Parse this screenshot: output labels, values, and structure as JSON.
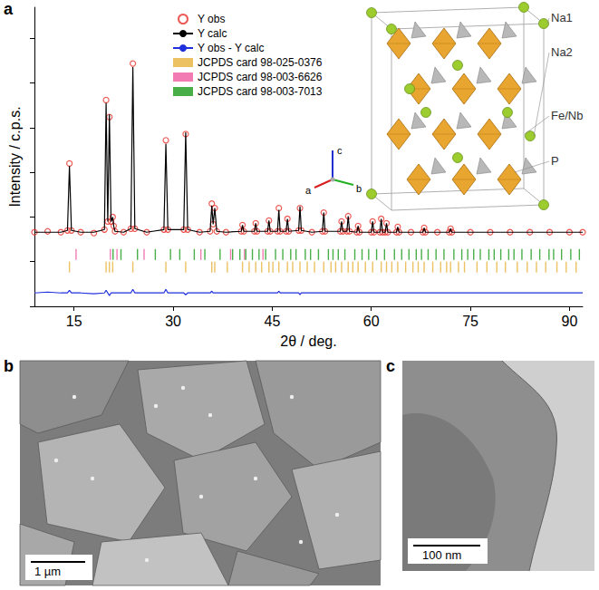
{
  "chart_data": {
    "type": "line",
    "x_label": "2θ / deg.",
    "y_label": "Intensity / c.p.s.",
    "x": [
      9,
      11,
      13,
      14.0,
      14.3,
      14.6,
      16,
      18,
      19.6,
      19.85,
      20.1,
      20.35,
      20.6,
      20.85,
      21.0,
      21.2,
      22.5,
      23.6,
      23.9,
      24.2,
      26,
      28.6,
      28.9,
      29.2,
      31.6,
      31.9,
      32.2,
      34,
      35.6,
      35.85,
      36.05,
      36.3,
      36.6,
      38,
      40.3,
      40.5,
      40.7,
      42.3,
      42.5,
      42.7,
      44.3,
      44.5,
      44.7,
      45.8,
      46.0,
      46.2,
      47.1,
      47.3,
      47.5,
      49.0,
      49.2,
      49.4,
      51,
      52.6,
      52.8,
      53.0,
      55.3,
      55.5,
      55.7,
      56.3,
      56.5,
      56.7,
      57.8,
      58.0,
      58.2,
      60.0,
      60.2,
      60.4,
      61.3,
      61.5,
      61.7,
      62.1,
      62.3,
      62.5,
      63.8,
      64.0,
      64.2,
      66,
      67.8,
      68.0,
      68.2,
      70,
      71.8,
      72,
      72.2,
      75,
      78,
      81,
      84,
      87,
      90,
      92
    ],
    "series": [
      {
        "name": "Y obs",
        "type": "scatter",
        "marker": "open_circle",
        "color": "#e8312a",
        "values": [
          83,
          84,
          83,
          85,
          160,
          85,
          83,
          82,
          86,
          231,
          95,
          212,
          95,
          100,
          90,
          84,
          83,
          87,
          272,
          87,
          83,
          86,
          186,
          86,
          86,
          193,
          86,
          83,
          84,
          115,
          92,
          110,
          84,
          83,
          84,
          91,
          84,
          84,
          93,
          84,
          84,
          96,
          84,
          84,
          110,
          84,
          84,
          98,
          84,
          85,
          110,
          85,
          83,
          84,
          105,
          84,
          84,
          95,
          84,
          84,
          101,
          84,
          83,
          90,
          83,
          83,
          95,
          83,
          83,
          98,
          83,
          83,
          93,
          83,
          83,
          89,
          83,
          83,
          83,
          88,
          83,
          83,
          83,
          87,
          83,
          83,
          83,
          83,
          83,
          83,
          83,
          83
        ]
      },
      {
        "name": "Y calc",
        "type": "line",
        "line_style": "solid",
        "color": "#000000",
        "values": [
          83,
          83,
          83,
          85,
          157,
          85,
          83,
          83,
          86,
          228,
          95,
          215,
          95,
          100,
          90,
          84,
          83,
          87,
          268,
          87,
          83,
          86,
          182,
          86,
          86,
          195,
          86,
          83,
          84,
          113,
          92,
          110,
          84,
          83,
          84,
          91,
          84,
          84,
          93,
          84,
          84,
          96,
          84,
          84,
          108,
          84,
          84,
          98,
          84,
          85,
          112,
          85,
          83,
          84,
          105,
          84,
          84,
          95,
          84,
          84,
          101,
          84,
          83,
          90,
          83,
          83,
          95,
          83,
          83,
          98,
          83,
          83,
          93,
          83,
          83,
          89,
          83,
          83,
          83,
          88,
          83,
          83,
          83,
          87,
          83,
          83,
          83,
          83,
          83,
          83,
          83,
          83
        ]
      },
      {
        "name": "Y obs - Y calc",
        "type": "line",
        "line_style": "solid",
        "color": "#1f2fdc",
        "values": [
          15,
          16,
          15,
          15,
          18,
          15,
          15,
          14,
          15,
          18,
          15,
          12,
          15,
          15,
          15,
          15,
          15,
          15,
          19,
          15,
          15,
          15,
          19,
          15,
          15,
          13,
          15,
          15,
          15,
          17,
          15,
          15,
          15,
          15,
          15,
          15,
          15,
          15,
          15,
          15,
          15,
          15,
          15,
          15,
          17,
          15,
          15,
          15,
          15,
          15,
          13,
          15,
          15,
          15,
          15,
          15,
          15,
          15,
          15,
          15,
          15,
          15,
          15,
          15,
          15,
          15,
          15,
          15,
          15,
          15,
          15,
          15,
          15,
          15,
          15,
          15,
          15,
          15,
          15,
          15,
          15,
          15,
          15,
          15,
          15,
          15,
          15,
          15,
          15,
          15,
          15,
          15
        ]
      },
      {
        "name": "JCPDS card 98-025-0376",
        "type": "ticks",
        "marker": "vline",
        "color": "#e6b13a",
        "level": 44,
        "x": [
          14.3,
          19.85,
          20.35,
          20.85,
          23.9,
          28.9,
          31.9,
          35.85,
          36.3,
          38.2,
          40.5,
          41.5,
          42.5,
          43.4,
          44.5,
          45.1,
          46.0,
          47.3,
          48.1,
          49.2,
          50.3,
          51.4,
          52.8,
          53.9,
          54.6,
          55.5,
          56.5,
          57.2,
          58.0,
          59.1,
          60.2,
          61.5,
          62.3,
          63.1,
          64.0,
          65.2,
          66.3,
          67.1,
          68.0,
          69.3,
          70.5,
          71.4,
          72,
          73.2,
          74.1,
          76.0,
          77.5,
          79.0,
          80.3,
          82.1,
          83.6,
          85.0,
          86.4,
          88.1,
          89.5,
          91.0
        ]
      },
      {
        "name": "JCPDS card 98-003-6626",
        "type": "ticks",
        "marker": "vline",
        "color": "#ef5aa0",
        "level": 58,
        "x": [
          15.3,
          20.5,
          21.5,
          25.6,
          34.2,
          38.7,
          40.8,
          43.6
        ]
      },
      {
        "name": "JCPDS card 98-003-7013",
        "type": "ticks",
        "marker": "vline",
        "color": "#1a9b1a",
        "level": 58,
        "x": [
          20.9,
          22.1,
          24.6,
          27.3,
          29.6,
          31.0,
          33.2,
          34.8,
          37.1,
          39.0,
          40.1,
          41.0,
          42.0,
          43.0,
          44.0,
          45.5,
          46.6,
          47.8,
          48.6,
          50.0,
          50.8,
          52.0,
          53.5,
          54.2,
          55.0,
          56.0,
          57.5,
          58.6,
          59.6,
          60.8,
          62.0,
          63.5,
          64.6,
          65.7,
          66.8,
          67.6,
          68.6,
          69.8,
          71.0,
          72.5,
          73.7,
          74.6,
          75.5,
          76.5,
          77.8,
          78.6,
          79.6,
          80.8,
          81.6,
          82.8,
          84.2,
          85.5,
          86.9,
          87.6,
          88.8,
          90.2,
          91.5
        ]
      }
    ],
    "xlim": [
      9,
      92
    ],
    "xticks": [
      15,
      30,
      45,
      60,
      75,
      90
    ],
    "ylim": [
      0,
      335
    ],
    "yticks": [
      0,
      50,
      100,
      150,
      200,
      250,
      300
    ],
    "tick_labels": "x",
    "grid": false,
    "legend": "upper left"
  },
  "panel_labels": [
    "a",
    "b",
    "c"
  ],
  "inset": {
    "site_labels": [
      "Na1",
      "Na2",
      "Fe/Nb",
      "P"
    ],
    "axis_labels": [
      "a",
      "b",
      "c"
    ]
  },
  "images": [
    {
      "scale_bar": "1 µm"
    },
    {
      "scale_bar": "100 nm"
    }
  ]
}
